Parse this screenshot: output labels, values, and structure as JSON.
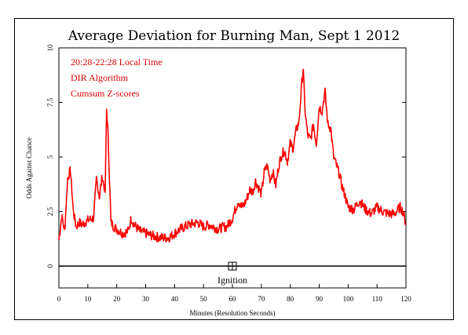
{
  "chart_data": {
    "type": "line",
    "title": "Average Deviation for Burning Man, Sept 1 2012",
    "xlabel": "Minutes (Resolution Seconds)",
    "ylabel": "Odds Against Chance",
    "xlim": [
      0,
      120
    ],
    "ylim": [
      -1,
      10
    ],
    "x_ticks": [
      "0",
      "10",
      "20",
      "30",
      "40",
      "50",
      "60",
      "70",
      "80",
      "90",
      "100",
      "110",
      "120"
    ],
    "y_ticks": [
      "0",
      "2.5",
      "5",
      "7.5",
      "10"
    ],
    "annotations": [
      "20:28-22:28 Local Time",
      "DIR Algorithm",
      "Cumsum Z-scores"
    ],
    "marker": {
      "label": "Ignition",
      "x": 60,
      "y": 0
    },
    "baseline_y": 0,
    "series": [
      {
        "color": "#ff0000",
        "x": [
          0,
          1,
          2,
          3,
          4,
          5,
          6,
          7,
          8,
          10,
          12,
          13,
          14,
          15,
          16,
          16.5,
          17,
          17.5,
          18,
          19,
          20,
          22,
          24,
          25,
          26,
          28,
          30,
          32,
          35,
          38,
          40,
          42,
          45,
          48,
          50,
          52,
          55,
          57,
          58,
          59,
          60,
          61,
          62,
          63,
          64,
          65,
          66,
          67,
          68,
          69,
          70,
          71,
          72,
          73,
          74,
          75,
          76,
          77,
          78,
          79,
          80,
          81,
          82,
          83,
          84,
          84.5,
          85,
          86,
          87,
          88,
          89,
          90,
          91,
          92,
          93,
          94,
          95,
          96,
          97,
          98,
          99,
          100,
          102,
          104,
          106,
          108,
          110,
          112,
          114,
          116,
          118,
          119,
          120
        ],
        "y": [
          1.2,
          2.3,
          1.6,
          4.0,
          4.4,
          2.5,
          1.8,
          2.0,
          1.9,
          2.1,
          2.2,
          4.0,
          3.2,
          4.1,
          3.4,
          7.2,
          6.0,
          4.0,
          2.0,
          1.8,
          1.7,
          1.5,
          1.6,
          2.2,
          1.9,
          1.6,
          1.5,
          1.4,
          1.3,
          1.3,
          1.5,
          1.7,
          1.9,
          2.0,
          1.8,
          1.9,
          1.7,
          1.8,
          1.8,
          2.0,
          2.2,
          2.6,
          3.0,
          2.7,
          2.8,
          3.1,
          3.5,
          3.4,
          3.9,
          3.6,
          3.3,
          4.3,
          4.6,
          4.0,
          4.3,
          3.7,
          4.6,
          5.1,
          5.3,
          4.8,
          5.6,
          5.4,
          6.2,
          6.6,
          8.4,
          9.1,
          7.3,
          6.0,
          5.8,
          6.5,
          5.6,
          7.3,
          7.1,
          8.0,
          6.5,
          6.3,
          5.0,
          4.6,
          4.2,
          3.6,
          3.2,
          2.7,
          2.6,
          3.0,
          2.6,
          2.4,
          2.7,
          2.5,
          2.4,
          2.4,
          2.7,
          2.5,
          1.9
        ]
      }
    ],
    "grid": false
  }
}
